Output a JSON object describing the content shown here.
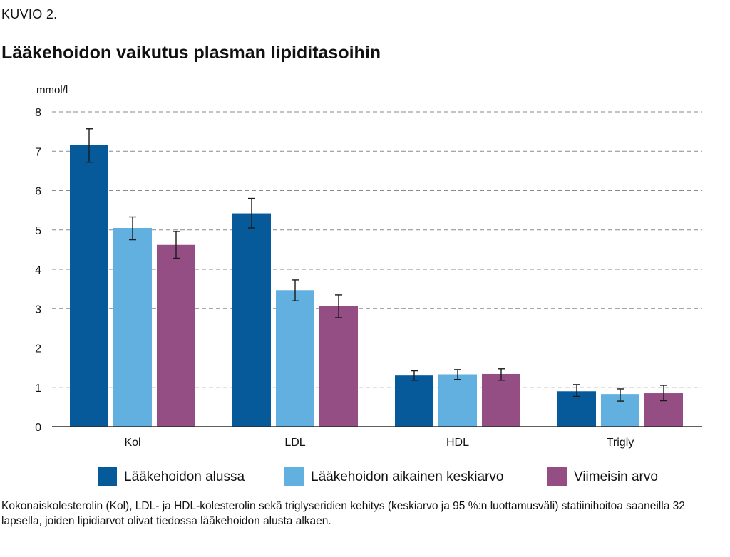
{
  "figure_label": "KUVIO 2.",
  "chart_data": {
    "type": "bar",
    "title": "Lääkehoidon vaikutus plasman lipiditasoihin",
    "ylabel": "mmol/l",
    "xlabel": "",
    "ylim": [
      0,
      8
    ],
    "yticks": [
      0,
      1,
      2,
      3,
      4,
      5,
      6,
      7,
      8
    ],
    "grid": true,
    "legend_position": "bottom",
    "categories": [
      "Kol",
      "LDL",
      "HDL",
      "Trigly"
    ],
    "series": [
      {
        "name": "Lääkehoidon alussa",
        "color": "#075a9a",
        "values": [
          7.15,
          5.42,
          1.3,
          0.9
        ],
        "ci_low": [
          6.72,
          5.05,
          1.18,
          0.77
        ],
        "ci_high": [
          7.57,
          5.8,
          1.42,
          1.07
        ]
      },
      {
        "name": "Lääkehoidon aikainen keskiarvo",
        "color": "#62b0e0",
        "values": [
          5.05,
          3.47,
          1.33,
          0.83
        ],
        "ci_low": [
          4.75,
          3.2,
          1.2,
          0.65
        ],
        "ci_high": [
          5.33,
          3.73,
          1.45,
          0.96
        ]
      },
      {
        "name": "Viimeisin arvo",
        "color": "#954e83",
        "values": [
          4.62,
          3.07,
          1.34,
          0.85
        ],
        "ci_low": [
          4.28,
          2.77,
          1.18,
          0.66
        ],
        "ci_high": [
          4.96,
          3.35,
          1.47,
          1.05
        ]
      }
    ]
  },
  "caption": "Kokonaiskolesterolin (Kol), LDL- ja HDL-kolesterolin sekä triglyseridien kehitys (keskiarvo ja 95 %:n luottamusväli) statiinihoitoa saaneilla 32 lapsella, joiden lipidiarvot olivat tiedossa lääkehoidon alusta alkaen."
}
